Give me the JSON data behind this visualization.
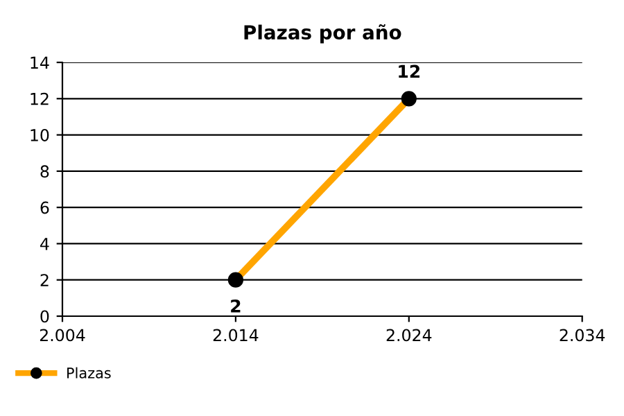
{
  "chart_data": {
    "type": "line",
    "title": "Plazas por año",
    "x": [
      2014,
      2024
    ],
    "series": [
      {
        "name": "Plazas",
        "color": "#ffa500",
        "values": [
          2,
          12
        ]
      }
    ],
    "xlim": [
      2004,
      2034
    ],
    "xticks": [
      {
        "value": 2004,
        "label": "2.004"
      },
      {
        "value": 2014,
        "label": "2.014"
      },
      {
        "value": 2024,
        "label": "2.024"
      },
      {
        "value": 2034,
        "label": "2.034"
      }
    ],
    "ylim": [
      0,
      14
    ],
    "yticks": [
      0,
      2,
      4,
      6,
      8,
      10,
      12,
      14
    ],
    "grid": "y",
    "legend": "bottom left",
    "marker": "circle",
    "line_style": "solid",
    "data_labels": true
  }
}
